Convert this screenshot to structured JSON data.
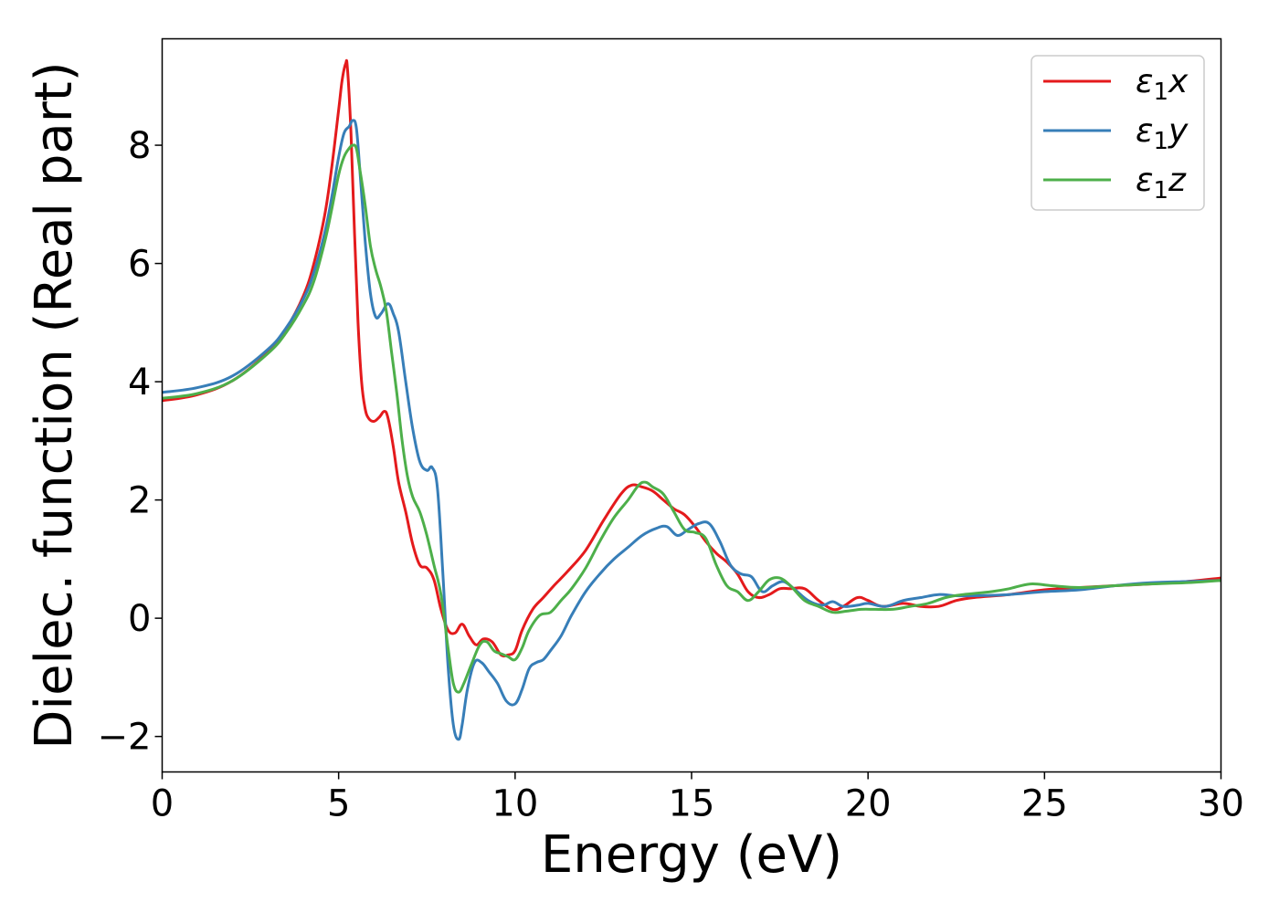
{
  "chart_data": {
    "type": "line",
    "title": "",
    "xlabel": "Energy (eV)",
    "ylabel": "Dielec. function (Real part)",
    "xlim": [
      0,
      30
    ],
    "ylim": [
      -2.6,
      9.8
    ],
    "xticks": [
      0,
      5,
      10,
      15,
      20,
      25,
      30
    ],
    "xtick_labels": [
      "0",
      "5",
      "10",
      "15",
      "20",
      "25",
      "30"
    ],
    "yticks": [
      -2,
      0,
      2,
      4,
      6,
      8
    ],
    "ytick_labels": [
      "−2",
      "0",
      "2",
      "4",
      "6",
      "8"
    ],
    "grid": false,
    "legend_position": "top-right",
    "series": [
      {
        "name": "ε₁x",
        "legend_main": "ε",
        "legend_sub": "1",
        "legend_var": "x",
        "color": "#e41a1c",
        "x": [
          0,
          1,
          2,
          3,
          3.5,
          4,
          4.3,
          4.6,
          4.8,
          5.0,
          5.1,
          5.2,
          5.25,
          5.35,
          5.45,
          5.55,
          5.65,
          5.75,
          5.85,
          6.0,
          6.15,
          6.3,
          6.4,
          6.55,
          6.7,
          6.9,
          7.1,
          7.3,
          7.5,
          7.7,
          7.9,
          8.1,
          8.3,
          8.5,
          8.7,
          8.9,
          9.1,
          9.35,
          9.6,
          9.8,
          10.0,
          10.2,
          10.5,
          10.8,
          11.1,
          11.5,
          12.0,
          12.5,
          13.0,
          13.3,
          13.6,
          13.9,
          14.2,
          14.5,
          14.8,
          15.1,
          15.4,
          15.7,
          16.0,
          16.3,
          16.6,
          16.9,
          17.2,
          17.5,
          17.8,
          18.2,
          18.6,
          19.0,
          19.3,
          19.7,
          20.0,
          20.4,
          21.0,
          21.5,
          22.0,
          22.5,
          23.0,
          24.0,
          25.0,
          26.0,
          27.0,
          28.0,
          29.0,
          30.0
        ],
        "y": [
          3.68,
          3.78,
          4.02,
          4.5,
          4.88,
          5.45,
          6.0,
          6.8,
          7.6,
          8.6,
          9.1,
          9.38,
          9.3,
          8.2,
          6.5,
          5.0,
          4.0,
          3.55,
          3.38,
          3.33,
          3.4,
          3.5,
          3.38,
          2.9,
          2.3,
          1.8,
          1.25,
          0.9,
          0.85,
          0.65,
          0.15,
          -0.2,
          -0.25,
          -0.1,
          -0.3,
          -0.45,
          -0.35,
          -0.4,
          -0.62,
          -0.62,
          -0.55,
          -0.2,
          0.15,
          0.35,
          0.55,
          0.8,
          1.15,
          1.65,
          2.1,
          2.25,
          2.22,
          2.15,
          2.0,
          1.85,
          1.75,
          1.55,
          1.3,
          1.1,
          0.95,
          0.75,
          0.45,
          0.35,
          0.4,
          0.5,
          0.5,
          0.5,
          0.3,
          0.15,
          0.2,
          0.35,
          0.3,
          0.2,
          0.25,
          0.2,
          0.2,
          0.3,
          0.35,
          0.4,
          0.48,
          0.52,
          0.55,
          0.58,
          0.62,
          0.68
        ]
      },
      {
        "name": "ε₁y",
        "legend_main": "ε",
        "legend_sub": "1",
        "legend_var": "y",
        "color": "#377eb8",
        "x": [
          0,
          1,
          2,
          3,
          3.5,
          4,
          4.3,
          4.6,
          4.8,
          5.0,
          5.15,
          5.3,
          5.4,
          5.5,
          5.6,
          5.75,
          5.9,
          6.05,
          6.2,
          6.4,
          6.55,
          6.7,
          6.9,
          7.1,
          7.3,
          7.5,
          7.65,
          7.8,
          7.95,
          8.1,
          8.25,
          8.4,
          8.5,
          8.65,
          8.85,
          9.05,
          9.25,
          9.5,
          9.75,
          10.0,
          10.2,
          10.4,
          10.6,
          10.8,
          11.0,
          11.3,
          11.6,
          12.0,
          12.4,
          12.8,
          13.2,
          13.6,
          14.0,
          14.3,
          14.6,
          14.9,
          15.2,
          15.5,
          15.8,
          16.1,
          16.4,
          16.7,
          17.0,
          17.3,
          17.6,
          17.9,
          18.3,
          18.7,
          19.0,
          19.3,
          19.7,
          20.0,
          20.5,
          21.0,
          21.5,
          22.0,
          22.5,
          23.0,
          24.0,
          25.0,
          26.0,
          27.0,
          28.0,
          29.0,
          30.0
        ],
        "y": [
          3.82,
          3.9,
          4.1,
          4.55,
          4.9,
          5.4,
          5.85,
          6.5,
          7.1,
          7.8,
          8.2,
          8.32,
          8.42,
          8.3,
          7.6,
          6.4,
          5.5,
          5.1,
          5.15,
          5.32,
          5.15,
          4.85,
          4.0,
          3.2,
          2.65,
          2.5,
          2.55,
          2.2,
          0.8,
          -0.8,
          -1.8,
          -2.05,
          -1.8,
          -1.2,
          -0.75,
          -0.75,
          -0.9,
          -1.1,
          -1.4,
          -1.45,
          -1.2,
          -0.85,
          -0.75,
          -0.7,
          -0.55,
          -0.3,
          0.05,
          0.45,
          0.75,
          1.0,
          1.2,
          1.4,
          1.52,
          1.55,
          1.4,
          1.5,
          1.6,
          1.6,
          1.3,
          0.9,
          0.75,
          0.7,
          0.45,
          0.55,
          0.62,
          0.5,
          0.3,
          0.22,
          0.28,
          0.2,
          0.22,
          0.25,
          0.2,
          0.3,
          0.35,
          0.4,
          0.38,
          0.38,
          0.4,
          0.45,
          0.48,
          0.55,
          0.6,
          0.62,
          0.64
        ]
      },
      {
        "name": "ε₁z",
        "legend_main": "ε",
        "legend_sub": "1",
        "legend_var": "z",
        "color": "#4daf4a",
        "x": [
          0,
          1,
          2,
          3,
          3.5,
          4,
          4.3,
          4.6,
          4.8,
          5.0,
          5.15,
          5.3,
          5.4,
          5.5,
          5.6,
          5.75,
          5.9,
          6.05,
          6.2,
          6.35,
          6.5,
          6.65,
          6.8,
          6.95,
          7.1,
          7.3,
          7.5,
          7.7,
          7.9,
          8.1,
          8.25,
          8.4,
          8.55,
          8.75,
          9.0,
          9.2,
          9.4,
          9.6,
          9.8,
          10.0,
          10.2,
          10.4,
          10.7,
          11.0,
          11.3,
          11.6,
          12.0,
          12.4,
          12.8,
          13.2,
          13.5,
          13.7,
          13.9,
          14.2,
          14.5,
          14.8,
          15.1,
          15.4,
          15.7,
          16.0,
          16.3,
          16.6,
          16.9,
          17.2,
          17.5,
          17.8,
          18.2,
          18.6,
          19.0,
          19.4,
          19.8,
          20.2,
          20.7,
          21.2,
          21.7,
          22.2,
          22.7,
          23.5,
          24.0,
          24.6,
          25.2,
          26.0,
          27.0,
          28.0,
          29.0,
          30.0
        ],
        "y": [
          3.72,
          3.8,
          4.02,
          4.48,
          4.82,
          5.3,
          5.7,
          6.35,
          6.9,
          7.5,
          7.8,
          7.95,
          8.0,
          7.95,
          7.6,
          7.0,
          6.3,
          5.9,
          5.6,
          5.2,
          4.5,
          3.8,
          3.0,
          2.4,
          2.05,
          1.8,
          1.4,
          0.9,
          0.4,
          -0.5,
          -1.1,
          -1.25,
          -1.1,
          -0.8,
          -0.45,
          -0.4,
          -0.55,
          -0.6,
          -0.65,
          -0.7,
          -0.5,
          -0.2,
          0.05,
          0.1,
          0.3,
          0.5,
          0.85,
          1.3,
          1.7,
          2.0,
          2.25,
          2.3,
          2.22,
          2.1,
          1.8,
          1.5,
          1.45,
          1.35,
          0.9,
          0.55,
          0.45,
          0.3,
          0.45,
          0.65,
          0.68,
          0.55,
          0.3,
          0.2,
          0.1,
          0.12,
          0.15,
          0.15,
          0.15,
          0.2,
          0.25,
          0.35,
          0.4,
          0.45,
          0.5,
          0.58,
          0.55,
          0.52,
          0.55,
          0.58,
          0.6,
          0.64
        ]
      }
    ]
  }
}
